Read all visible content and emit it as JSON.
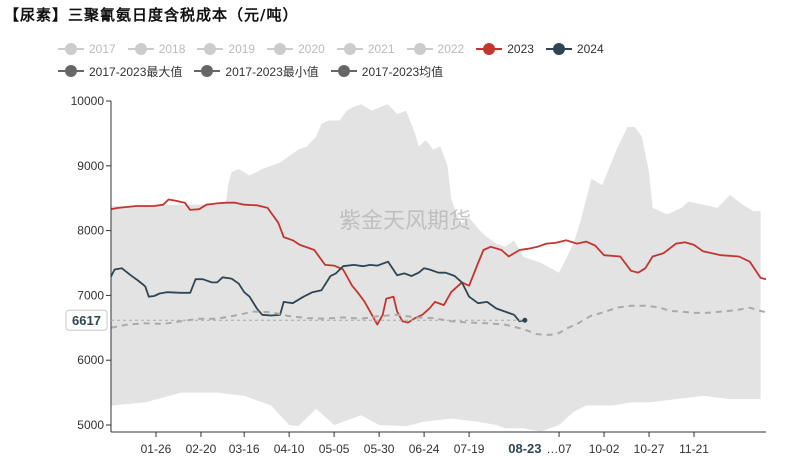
{
  "title": "【尿素】三聚氰氨日度含税成本（元/吨）",
  "watermark": "紫金天风期货",
  "legend": [
    {
      "name": "2017",
      "color": "#cccccc",
      "active": false
    },
    {
      "name": "2018",
      "color": "#cccccc",
      "active": false
    },
    {
      "name": "2019",
      "color": "#cccccc",
      "active": false
    },
    {
      "name": "2020",
      "color": "#cccccc",
      "active": false
    },
    {
      "name": "2021",
      "color": "#cccccc",
      "active": false
    },
    {
      "name": "2022",
      "color": "#cccccc",
      "active": false
    },
    {
      "name": "2023",
      "color": "#c23531",
      "active": true
    },
    {
      "name": "2024",
      "color": "#2f4554",
      "active": true
    },
    {
      "name": "2017-2023最大值",
      "color": "#666666",
      "active": true
    },
    {
      "name": "2017-2023最小值",
      "color": "#666666",
      "active": true
    },
    {
      "name": "2017-2023均值",
      "color": "#666666",
      "active": true
    }
  ],
  "hover": {
    "x_label": "08-23",
    "y_value": "6617"
  },
  "chart_data": {
    "type": "line",
    "ylim": [
      5000,
      10000
    ],
    "yticks": [
      5000,
      6000,
      7000,
      8000,
      9000,
      10000
    ],
    "xlim": [
      1,
      365
    ],
    "xticks": [
      {
        "day": 26,
        "label": "01-26"
      },
      {
        "day": 51,
        "label": "02-20"
      },
      {
        "day": 75,
        "label": "03-16"
      },
      {
        "day": 100,
        "label": "04-10"
      },
      {
        "day": 125,
        "label": "05-05"
      },
      {
        "day": 150,
        "label": "05-30"
      },
      {
        "day": 175,
        "label": "06-24"
      },
      {
        "day": 200,
        "label": "07-19"
      },
      {
        "day": 250,
        "label": "…07"
      },
      {
        "day": 275,
        "label": "10-02"
      },
      {
        "day": 300,
        "label": "10-27"
      },
      {
        "day": 325,
        "label": "11-21"
      }
    ],
    "band": {
      "name_max": "2017-2023最大值",
      "name_min": "2017-2023最小值",
      "color": "#e3e3e3",
      "max": [
        [
          1,
          8380
        ],
        [
          20,
          8380
        ],
        [
          40,
          8400
        ],
        [
          60,
          8400
        ],
        [
          65,
          8450
        ],
        [
          66,
          8700
        ],
        [
          68,
          8900
        ],
        [
          72,
          8950
        ],
        [
          78,
          8850
        ],
        [
          85,
          8950
        ],
        [
          95,
          9050
        ],
        [
          105,
          9250
        ],
        [
          110,
          9300
        ],
        [
          115,
          9450
        ],
        [
          118,
          9650
        ],
        [
          122,
          9700
        ],
        [
          128,
          9700
        ],
        [
          132,
          9850
        ],
        [
          135,
          9900
        ],
        [
          140,
          9950
        ],
        [
          146,
          9850
        ],
        [
          150,
          9900
        ],
        [
          155,
          9950
        ],
        [
          160,
          9800
        ],
        [
          165,
          9850
        ],
        [
          170,
          9500
        ],
        [
          172,
          9300
        ],
        [
          176,
          9400
        ],
        [
          180,
          9250
        ],
        [
          184,
          9300
        ],
        [
          188,
          9000
        ],
        [
          190,
          8500
        ],
        [
          195,
          8100
        ],
        [
          200,
          8200
        ],
        [
          206,
          8000
        ],
        [
          210,
          7900
        ],
        [
          215,
          7800
        ],
        [
          220,
          7750
        ],
        [
          225,
          7850
        ],
        [
          230,
          7600
        ],
        [
          240,
          7500
        ],
        [
          250,
          7350
        ],
        [
          258,
          7800
        ],
        [
          262,
          8150
        ],
        [
          268,
          8800
        ],
        [
          274,
          8700
        ],
        [
          282,
          9250
        ],
        [
          288,
          9600
        ],
        [
          292,
          9600
        ],
        [
          296,
          9450
        ],
        [
          300,
          8900
        ],
        [
          302,
          8350
        ],
        [
          310,
          8250
        ],
        [
          318,
          8350
        ],
        [
          322,
          8450
        ],
        [
          330,
          8400
        ],
        [
          338,
          8350
        ],
        [
          345,
          8550
        ],
        [
          352,
          8400
        ],
        [
          358,
          8300
        ],
        [
          362,
          8300
        ]
      ],
      "min": [
        [
          1,
          5300
        ],
        [
          20,
          5350
        ],
        [
          40,
          5500
        ],
        [
          60,
          5500
        ],
        [
          75,
          5450
        ],
        [
          90,
          5300
        ],
        [
          100,
          5000
        ],
        [
          105,
          4980
        ],
        [
          115,
          5250
        ],
        [
          125,
          5000
        ],
        [
          140,
          5150
        ],
        [
          150,
          5000
        ],
        [
          165,
          4980
        ],
        [
          175,
          5050
        ],
        [
          190,
          5100
        ],
        [
          205,
          5050
        ],
        [
          215,
          5000
        ],
        [
          220,
          4950
        ],
        [
          230,
          4950
        ],
        [
          240,
          4900
        ],
        [
          250,
          5000
        ],
        [
          258,
          5200
        ],
        [
          265,
          5300
        ],
        [
          280,
          5300
        ],
        [
          290,
          5350
        ],
        [
          300,
          5350
        ],
        [
          315,
          5400
        ],
        [
          330,
          5450
        ],
        [
          345,
          5400
        ],
        [
          362,
          5400
        ]
      ]
    },
    "series": [
      {
        "name": "2023",
        "color": "#c23531",
        "points": [
          [
            1,
            8330
          ],
          [
            5,
            8350
          ],
          [
            15,
            8380
          ],
          [
            25,
            8380
          ],
          [
            30,
            8400
          ],
          [
            33,
            8480
          ],
          [
            37,
            8460
          ],
          [
            42,
            8430
          ],
          [
            45,
            8320
          ],
          [
            50,
            8330
          ],
          [
            54,
            8400
          ],
          [
            60,
            8420
          ],
          [
            65,
            8430
          ],
          [
            70,
            8430
          ],
          [
            75,
            8400
          ],
          [
            82,
            8390
          ],
          [
            88,
            8350
          ],
          [
            94,
            8120
          ],
          [
            97,
            7900
          ],
          [
            102,
            7850
          ],
          [
            106,
            7780
          ],
          [
            110,
            7740
          ],
          [
            114,
            7700
          ],
          [
            120,
            7470
          ],
          [
            125,
            7460
          ],
          [
            130,
            7400
          ],
          [
            135,
            7150
          ],
          [
            138,
            7050
          ],
          [
            142,
            6900
          ],
          [
            146,
            6700
          ],
          [
            149,
            6550
          ],
          [
            152,
            6700
          ],
          [
            154,
            6950
          ],
          [
            158,
            6980
          ],
          [
            160,
            6750
          ],
          [
            163,
            6600
          ],
          [
            166,
            6580
          ],
          [
            170,
            6650
          ],
          [
            174,
            6700
          ],
          [
            178,
            6800
          ],
          [
            181,
            6900
          ],
          [
            186,
            6850
          ],
          [
            190,
            7050
          ],
          [
            196,
            7200
          ],
          [
            200,
            7150
          ],
          [
            205,
            7500
          ],
          [
            208,
            7700
          ],
          [
            212,
            7750
          ],
          [
            218,
            7700
          ],
          [
            222,
            7600
          ],
          [
            228,
            7700
          ],
          [
            233,
            7720
          ],
          [
            238,
            7750
          ],
          [
            243,
            7800
          ],
          [
            248,
            7810
          ],
          [
            254,
            7850
          ],
          [
            260,
            7800
          ],
          [
            265,
            7830
          ],
          [
            270,
            7770
          ],
          [
            275,
            7620
          ],
          [
            284,
            7600
          ],
          [
            290,
            7380
          ],
          [
            294,
            7350
          ],
          [
            298,
            7420
          ],
          [
            302,
            7600
          ],
          [
            308,
            7650
          ],
          [
            315,
            7800
          ],
          [
            320,
            7820
          ],
          [
            325,
            7780
          ],
          [
            330,
            7680
          ],
          [
            340,
            7620
          ],
          [
            350,
            7600
          ],
          [
            356,
            7520
          ],
          [
            362,
            7270
          ],
          [
            365,
            7250
          ]
        ]
      },
      {
        "name": "2024",
        "color": "#2f4554",
        "points": [
          [
            1,
            7290
          ],
          [
            3,
            7400
          ],
          [
            7,
            7420
          ],
          [
            12,
            7310
          ],
          [
            16,
            7230
          ],
          [
            20,
            7140
          ],
          [
            22,
            6980
          ],
          [
            25,
            6990
          ],
          [
            28,
            7030
          ],
          [
            32,
            7050
          ],
          [
            40,
            7040
          ],
          [
            45,
            7040
          ],
          [
            48,
            7250
          ],
          [
            52,
            7250
          ],
          [
            57,
            7200
          ],
          [
            60,
            7200
          ],
          [
            63,
            7280
          ],
          [
            68,
            7260
          ],
          [
            72,
            7180
          ],
          [
            75,
            7050
          ],
          [
            78,
            6980
          ],
          [
            82,
            6800
          ],
          [
            85,
            6700
          ],
          [
            90,
            6690
          ],
          [
            95,
            6700
          ],
          [
            97,
            6900
          ],
          [
            102,
            6880
          ],
          [
            108,
            6980
          ],
          [
            113,
            7050
          ],
          [
            118,
            7080
          ],
          [
            123,
            7300
          ],
          [
            126,
            7340
          ],
          [
            130,
            7450
          ],
          [
            136,
            7470
          ],
          [
            141,
            7450
          ],
          [
            145,
            7470
          ],
          [
            149,
            7460
          ],
          [
            155,
            7520
          ],
          [
            160,
            7310
          ],
          [
            164,
            7340
          ],
          [
            168,
            7300
          ],
          [
            172,
            7350
          ],
          [
            175,
            7420
          ],
          [
            178,
            7400
          ],
          [
            183,
            7350
          ],
          [
            187,
            7350
          ],
          [
            192,
            7300
          ],
          [
            196,
            7200
          ],
          [
            200,
            6980
          ],
          [
            205,
            6880
          ],
          [
            210,
            6900
          ],
          [
            215,
            6800
          ],
          [
            220,
            6750
          ],
          [
            225,
            6700
          ],
          [
            228,
            6600
          ],
          [
            231,
            6617
          ]
        ]
      },
      {
        "name": "2017-2023均值",
        "color": "#aaaaaa",
        "dashed": true,
        "points": [
          [
            1,
            6500
          ],
          [
            10,
            6550
          ],
          [
            20,
            6570
          ],
          [
            30,
            6560
          ],
          [
            40,
            6600
          ],
          [
            50,
            6640
          ],
          [
            60,
            6640
          ],
          [
            70,
            6690
          ],
          [
            80,
            6750
          ],
          [
            90,
            6740
          ],
          [
            100,
            6680
          ],
          [
            110,
            6650
          ],
          [
            120,
            6640
          ],
          [
            130,
            6660
          ],
          [
            140,
            6640
          ],
          [
            150,
            6680
          ],
          [
            160,
            6700
          ],
          [
            170,
            6660
          ],
          [
            180,
            6650
          ],
          [
            190,
            6600
          ],
          [
            200,
            6580
          ],
          [
            210,
            6570
          ],
          [
            220,
            6550
          ],
          [
            230,
            6480
          ],
          [
            238,
            6400
          ],
          [
            245,
            6390
          ],
          [
            250,
            6420
          ],
          [
            255,
            6500
          ],
          [
            260,
            6560
          ],
          [
            268,
            6690
          ],
          [
            275,
            6740
          ],
          [
            282,
            6810
          ],
          [
            290,
            6840
          ],
          [
            298,
            6840
          ],
          [
            305,
            6820
          ],
          [
            312,
            6760
          ],
          [
            318,
            6750
          ],
          [
            325,
            6730
          ],
          [
            332,
            6730
          ],
          [
            340,
            6750
          ],
          [
            348,
            6770
          ],
          [
            356,
            6810
          ],
          [
            362,
            6760
          ],
          [
            365,
            6740
          ]
        ]
      }
    ]
  }
}
